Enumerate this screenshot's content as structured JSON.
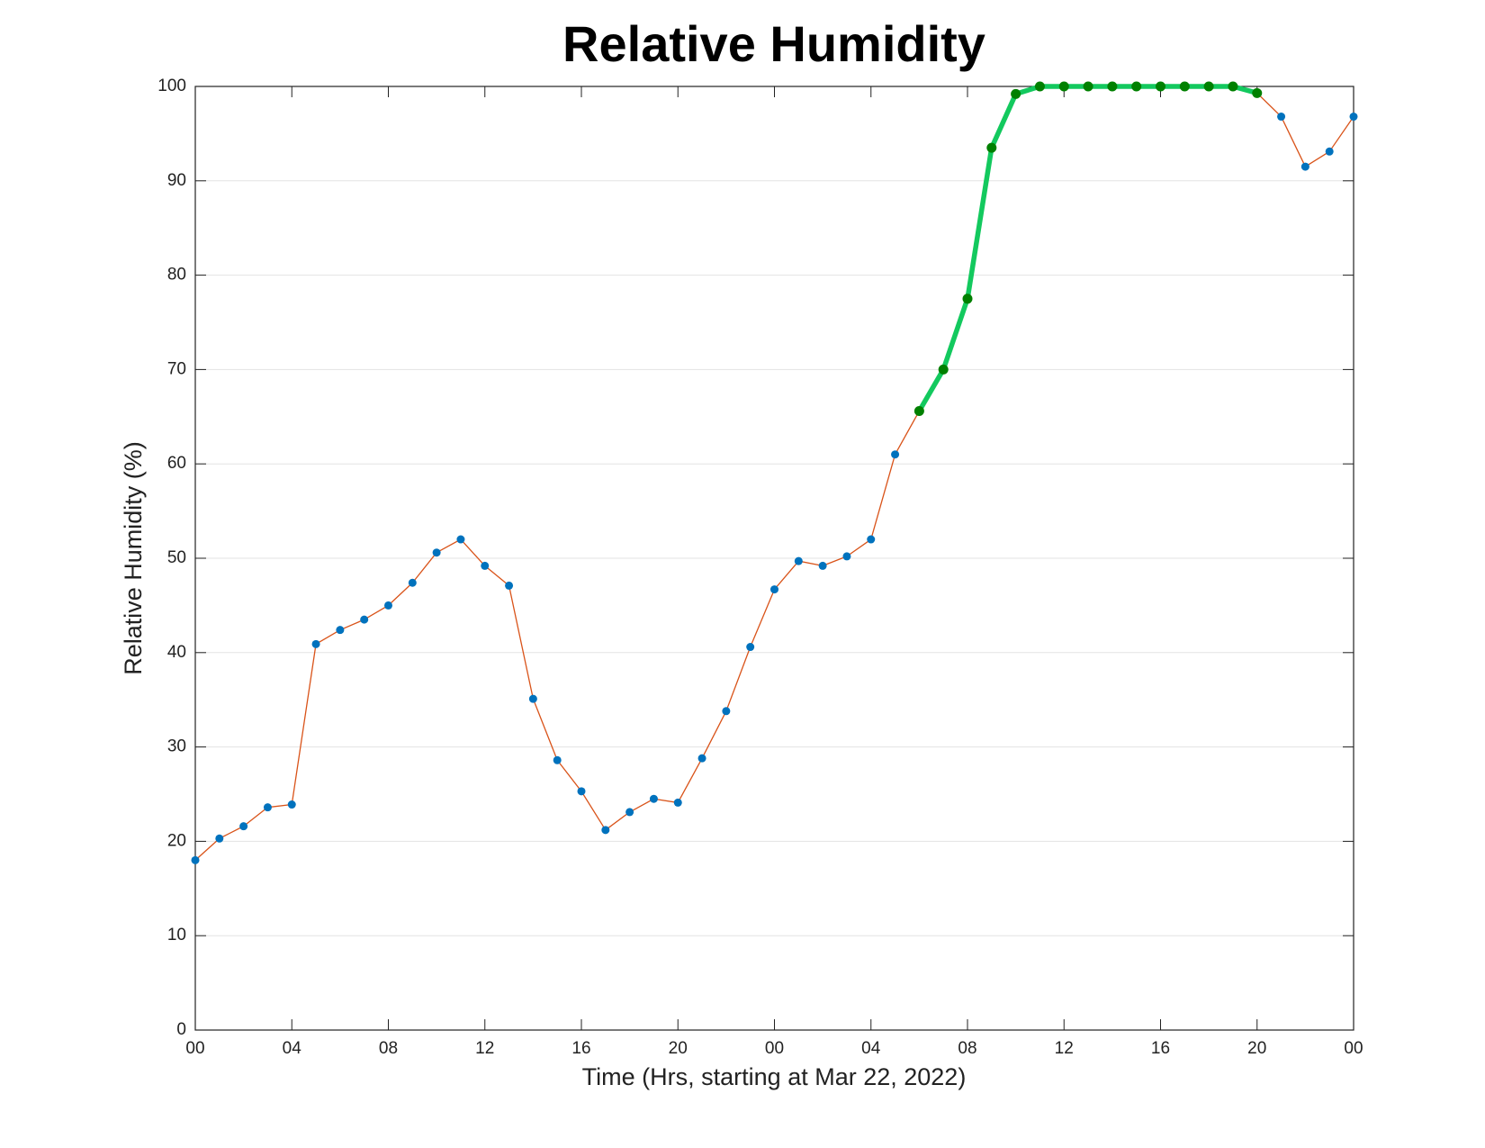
{
  "chart_data": {
    "type": "line",
    "title": "Relative Humidity",
    "xlabel": "Time (Hrs, starting at Mar 22, 2022)",
    "ylabel": "Relative Humidity (%)",
    "xlim": [
      0,
      48
    ],
    "xticks": [
      {
        "value": 0,
        "label": "00"
      },
      {
        "value": 4,
        "label": "04"
      },
      {
        "value": 8,
        "label": "08"
      },
      12,
      16,
      20,
      {
        "value": 24,
        "label": "00"
      },
      {
        "value": 28,
        "label": "04"
      },
      {
        "value": 32,
        "label": "08"
      },
      {
        "value": 36,
        "label": "12"
      },
      {
        "value": 40,
        "label": "16"
      },
      {
        "value": 44,
        "label": "20"
      },
      {
        "value": 48,
        "label": "00"
      }
    ],
    "ylim": [
      0,
      100
    ],
    "yticks": [
      0,
      10,
      20,
      30,
      40,
      50,
      60,
      70,
      80,
      90,
      100
    ],
    "grid": true,
    "series": [
      {
        "color": "#d95319",
        "marker_color": "#0072bd",
        "x": [
          0,
          1,
          2,
          3,
          4,
          5,
          6,
          7,
          8,
          9,
          10,
          11,
          12,
          13,
          14,
          15,
          16,
          17,
          18,
          19,
          20,
          21,
          22,
          23,
          24,
          25,
          26,
          27,
          28,
          29,
          30,
          31,
          32,
          33,
          34,
          35,
          36,
          37,
          38,
          39,
          40,
          41,
          42,
          43,
          44,
          45,
          46,
          47,
          48
        ],
        "values": [
          18.0,
          20.3,
          21.6,
          23.6,
          23.9,
          40.9,
          42.4,
          43.5,
          45.0,
          47.4,
          50.6,
          52.0,
          49.2,
          47.1,
          35.1,
          28.6,
          25.3,
          21.2,
          23.1,
          24.5,
          24.1,
          28.8,
          33.8,
          40.6,
          46.7,
          49.7,
          49.2,
          50.2,
          52.0,
          61.0,
          65.6,
          70.0,
          77.5,
          93.5,
          99.2,
          100,
          100,
          100,
          100,
          100,
          100,
          100,
          100,
          100,
          99.3,
          96.8,
          91.5,
          93.1,
          96.8
        ]
      },
      {
        "color": "#13c95e",
        "marker_color": "#008000",
        "x": [
          30,
          31,
          32,
          33,
          34,
          35,
          36,
          37,
          38,
          39,
          40,
          41,
          42,
          43,
          44
        ],
        "values": [
          65.6,
          70.0,
          77.5,
          93.5,
          99.2,
          100,
          100,
          100,
          100,
          100,
          100,
          100,
          100,
          100,
          99.3
        ]
      }
    ]
  }
}
